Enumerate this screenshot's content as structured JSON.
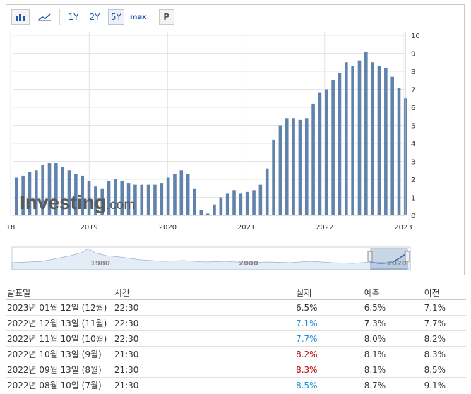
{
  "toolbar": {
    "bar_icon": "bar-chart-icon",
    "line_icon": "line-chart-icon",
    "ranges": [
      "1Y",
      "2Y",
      "5Y",
      "max"
    ],
    "active_range": "5Y",
    "p_label": "P"
  },
  "watermark": {
    "brand": "Investing",
    "suffix": ".com"
  },
  "colors": {
    "bar": "#5f83ad",
    "bar_light": "#b8c8dc",
    "grid": "#e4e4e4",
    "up": "#c00000",
    "down": "#1d8fd0"
  },
  "chart_data": {
    "type": "bar",
    "y_axis_position": "right",
    "ylim": [
      0,
      10
    ],
    "y_ticks": [
      0,
      1,
      2,
      3,
      4,
      5,
      6,
      7,
      8,
      9,
      10
    ],
    "x_tick_labels": [
      "18",
      "2019",
      "2020",
      "2021",
      "2022",
      "2023"
    ],
    "x_start_index": 0,
    "series": [
      {
        "values": [
          2.1,
          2.2,
          2.4,
          2.5,
          2.8,
          2.9,
          2.9,
          2.7,
          2.5,
          2.3,
          2.2,
          1.9,
          1.6,
          1.5,
          1.9,
          2.0,
          1.9,
          1.8,
          1.7,
          1.7,
          1.7,
          1.7,
          1.8,
          2.1,
          2.3,
          2.5,
          2.3,
          1.5,
          0.3,
          0.1,
          0.6,
          1.0,
          1.2,
          1.4,
          1.2,
          1.3,
          1.4,
          1.7,
          2.6,
          4.2,
          5.0,
          5.4,
          5.4,
          5.3,
          5.4,
          6.2,
          6.8,
          7.0,
          7.5,
          7.9,
          8.5,
          8.3,
          8.6,
          9.1,
          8.5,
          8.3,
          8.2,
          7.7,
          7.1,
          6.5
        ]
      }
    ],
    "grid": true
  },
  "navigator": {
    "labels": [
      "1980",
      "2000",
      "2020"
    ]
  },
  "table": {
    "headers": {
      "date": "발표일",
      "time": "시간",
      "actual": "실제",
      "forecast": "예측",
      "previous": "이전"
    },
    "rows": [
      {
        "date": "2023년 01월 12일 (12월)",
        "time": "22:30",
        "actual": "6.5%",
        "forecast": "6.5%",
        "previous": "7.1%",
        "trend": ""
      },
      {
        "date": "2022년 12월 13일 (11월)",
        "time": "22:30",
        "actual": "7.1%",
        "forecast": "7.3%",
        "previous": "7.7%",
        "trend": "down"
      },
      {
        "date": "2022년 11월 10일 (10월)",
        "time": "22:30",
        "actual": "7.7%",
        "forecast": "8.0%",
        "previous": "8.2%",
        "trend": "down"
      },
      {
        "date": "2022년 10월 13일 (9월)",
        "time": "21:30",
        "actual": "8.2%",
        "forecast": "8.1%",
        "previous": "8.3%",
        "trend": "up"
      },
      {
        "date": "2022년 09월 13일 (8월)",
        "time": "21:30",
        "actual": "8.3%",
        "forecast": "8.1%",
        "previous": "8.5%",
        "trend": "up"
      },
      {
        "date": "2022년 08월 10일 (7월)",
        "time": "21:30",
        "actual": "8.5%",
        "forecast": "8.7%",
        "previous": "9.1%",
        "trend": "down"
      }
    ]
  }
}
